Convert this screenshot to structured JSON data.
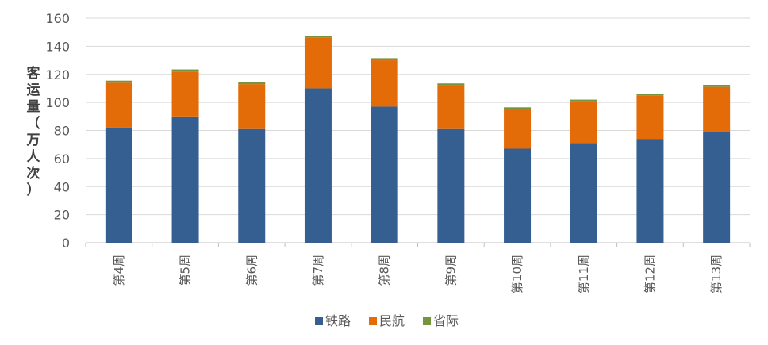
{
  "chart_data": {
    "type": "bar",
    "stacked": true,
    "title": "",
    "xlabel": "",
    "ylabel": "客运量（万人次）",
    "ylim": [
      0,
      160
    ],
    "yticks": [
      0,
      20,
      40,
      60,
      80,
      100,
      120,
      140,
      160
    ],
    "grid": true,
    "legend_position": "bottom",
    "categories": [
      "第4周",
      "第5周",
      "第6周",
      "第7周",
      "第8周",
      "第9周",
      "第10周",
      "第11周",
      "第12周",
      "第13周"
    ],
    "series": [
      {
        "name": "铁路",
        "color": "#355f91",
        "values": [
          82,
          90,
          81,
          110,
          97,
          81,
          67,
          71,
          74,
          79
        ]
      },
      {
        "name": "民航",
        "color": "#e36c09",
        "values": [
          32,
          32,
          32,
          36,
          33,
          31,
          28,
          30,
          31,
          32
        ]
      },
      {
        "name": "省际",
        "color": "#77933c",
        "values": [
          1.5,
          1.5,
          1.5,
          1.5,
          1.5,
          1.5,
          1.5,
          1,
          1,
          1.5
        ]
      }
    ]
  }
}
